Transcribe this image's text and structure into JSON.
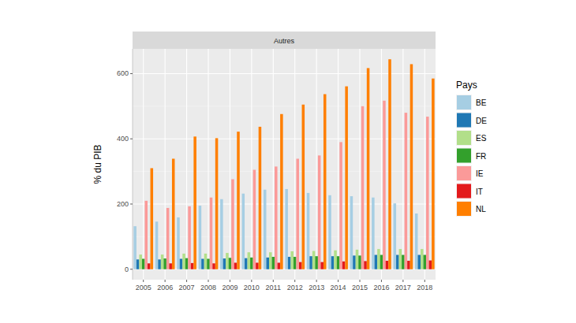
{
  "chart_data": {
    "type": "bar",
    "title": "Autres",
    "y_label": "% du PIB",
    "legend_title": "Pays",
    "legend": "right",
    "grid": true,
    "categories": [
      "2005",
      "2006",
      "2007",
      "2008",
      "2009",
      "2010",
      "2011",
      "2012",
      "2013",
      "2014",
      "2015",
      "2016",
      "2017",
      "2018"
    ],
    "ylim": [
      -32,
      676
    ],
    "yticks": [
      0,
      200,
      400,
      600
    ],
    "series": [
      {
        "name": "BE",
        "color": "#a6cee3",
        "values": [
          132,
          146,
          159,
          195,
          215,
          232,
          244,
          246,
          234,
          227,
          224,
          220,
          202,
          171
        ]
      },
      {
        "name": "DE",
        "color": "#1f78b4",
        "values": [
          30,
          30,
          32,
          32,
          33,
          34,
          36,
          38,
          40,
          40,
          42,
          44,
          44,
          44
        ]
      },
      {
        "name": "ES",
        "color": "#b2df8a",
        "values": [
          45,
          45,
          48,
          48,
          50,
          52,
          52,
          55,
          56,
          58,
          60,
          62,
          62,
          62
        ]
      },
      {
        "name": "FR",
        "color": "#33a02c",
        "values": [
          32,
          33,
          34,
          32,
          35,
          36,
          38,
          38,
          40,
          40,
          42,
          44,
          44,
          44
        ]
      },
      {
        "name": "IE",
        "color": "#fb9a99",
        "values": [
          210,
          188,
          193,
          220,
          276,
          305,
          315,
          339,
          349,
          390,
          500,
          517,
          480,
          468
        ]
      },
      {
        "name": "IT",
        "color": "#e31a1c",
        "values": [
          18,
          18,
          19,
          18,
          20,
          20,
          20,
          22,
          22,
          24,
          25,
          26,
          26,
          27
        ]
      },
      {
        "name": "NL",
        "color": "#ff7f00",
        "values": [
          310,
          339,
          407,
          402,
          422,
          437,
          476,
          505,
          537,
          561,
          617,
          644,
          629,
          585
        ]
      }
    ]
  }
}
